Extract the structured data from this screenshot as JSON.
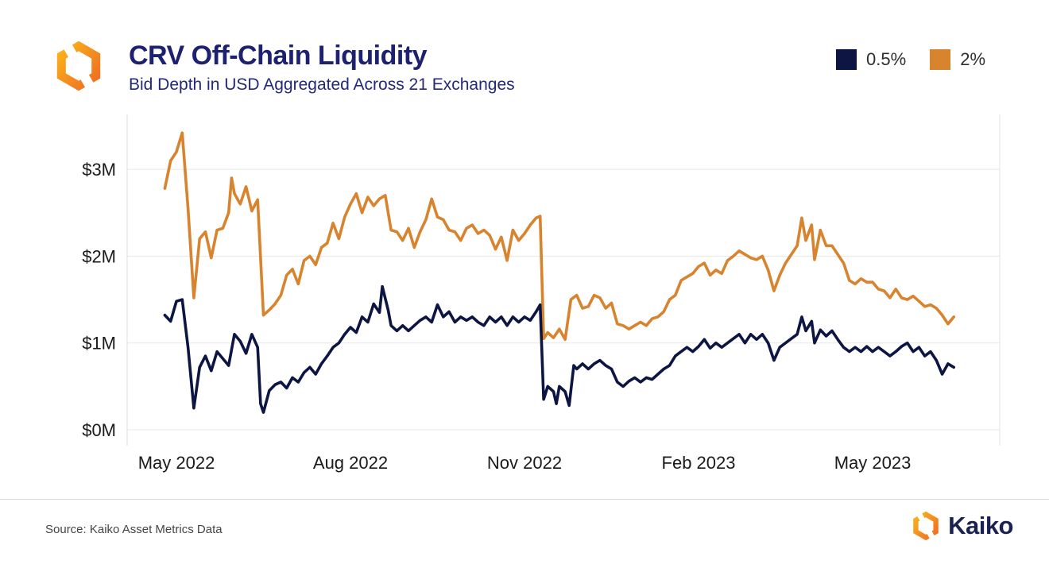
{
  "header": {
    "title": "CRV Off-Chain Liquidity",
    "subtitle": "Bid Depth in USD Aggregated Across 21 Exchanges"
  },
  "footer": {
    "source": "Source: Kaiko Asset Metrics Data",
    "brand": "Kaiko"
  },
  "brand_colors": {
    "title_navy": "#1e2170",
    "subtitle_navy": "#232878",
    "wordmark_navy": "#1b2150",
    "series_navy": "#0d1543",
    "series_orange": "#d8832e",
    "logo_gradient_start": "#fbb31a",
    "logo_gradient_end": "#ee6c24",
    "gridline_gray": "#e7e7e7",
    "axis_text": "#1a1a1a"
  },
  "chart_data": {
    "type": "line",
    "title": "CRV Off-Chain Liquidity",
    "subtitle": "Bid Depth in USD Aggregated Across 21 Exchanges",
    "x_unit": "months since 2022-05-01",
    "y_unit": "USD (millions)",
    "ylim": [
      0,
      3.6
    ],
    "grid": "horizontal",
    "legend_position": "top-right",
    "y_ticks": [
      {
        "value": 0,
        "label": "$0M"
      },
      {
        "value": 1,
        "label": "$1M"
      },
      {
        "value": 2,
        "label": "$2M"
      },
      {
        "value": 3,
        "label": "$3M"
      }
    ],
    "x_ticks": [
      {
        "t": 0,
        "label": "May 2022"
      },
      {
        "t": 3,
        "label": "Aug 2022"
      },
      {
        "t": 6,
        "label": "Nov 2022"
      },
      {
        "t": 9,
        "label": "Feb 2023"
      },
      {
        "t": 12,
        "label": "May 2023"
      }
    ],
    "series": [
      {
        "name": "0.5%",
        "color": "#0d1543",
        "points": [
          [
            -0.2,
            1.32
          ],
          [
            -0.1,
            1.25
          ],
          [
            0,
            1.48
          ],
          [
            0.1,
            1.5
          ],
          [
            0.2,
            0.95
          ],
          [
            0.3,
            0.25
          ],
          [
            0.4,
            0.72
          ],
          [
            0.5,
            0.85
          ],
          [
            0.6,
            0.68
          ],
          [
            0.7,
            0.9
          ],
          [
            0.8,
            0.82
          ],
          [
            0.9,
            0.74
          ],
          [
            1,
            1.1
          ],
          [
            1.1,
            1.02
          ],
          [
            1.2,
            0.88
          ],
          [
            1.3,
            1.1
          ],
          [
            1.4,
            0.95
          ],
          [
            1.45,
            0.3
          ],
          [
            1.5,
            0.2
          ],
          [
            1.6,
            0.45
          ],
          [
            1.7,
            0.52
          ],
          [
            1.8,
            0.55
          ],
          [
            1.9,
            0.48
          ],
          [
            2,
            0.6
          ],
          [
            2.1,
            0.55
          ],
          [
            2.2,
            0.66
          ],
          [
            2.3,
            0.72
          ],
          [
            2.4,
            0.64
          ],
          [
            2.5,
            0.76
          ],
          [
            2.6,
            0.85
          ],
          [
            2.7,
            0.95
          ],
          [
            2.8,
            1
          ],
          [
            2.9,
            1.1
          ],
          [
            3,
            1.18
          ],
          [
            3.1,
            1.12
          ],
          [
            3.2,
            1.3
          ],
          [
            3.3,
            1.24
          ],
          [
            3.4,
            1.45
          ],
          [
            3.5,
            1.35
          ],
          [
            3.55,
            1.65
          ],
          [
            3.65,
            1.38
          ],
          [
            3.7,
            1.2
          ],
          [
            3.8,
            1.14
          ],
          [
            3.9,
            1.2
          ],
          [
            4,
            1.14
          ],
          [
            4.1,
            1.2
          ],
          [
            4.2,
            1.26
          ],
          [
            4.3,
            1.3
          ],
          [
            4.4,
            1.24
          ],
          [
            4.5,
            1.44
          ],
          [
            4.6,
            1.3
          ],
          [
            4.7,
            1.36
          ],
          [
            4.8,
            1.24
          ],
          [
            4.9,
            1.3
          ],
          [
            5,
            1.26
          ],
          [
            5.1,
            1.3
          ],
          [
            5.2,
            1.24
          ],
          [
            5.3,
            1.2
          ],
          [
            5.4,
            1.3
          ],
          [
            5.5,
            1.24
          ],
          [
            5.6,
            1.3
          ],
          [
            5.7,
            1.2
          ],
          [
            5.8,
            1.3
          ],
          [
            5.9,
            1.24
          ],
          [
            6,
            1.3
          ],
          [
            6.1,
            1.26
          ],
          [
            6.2,
            1.36
          ],
          [
            6.27,
            1.44
          ],
          [
            6.33,
            0.35
          ],
          [
            6.4,
            0.5
          ],
          [
            6.5,
            0.44
          ],
          [
            6.55,
            0.3
          ],
          [
            6.6,
            0.5
          ],
          [
            6.7,
            0.44
          ],
          [
            6.77,
            0.28
          ],
          [
            6.85,
            0.74
          ],
          [
            6.9,
            0.7
          ],
          [
            7,
            0.76
          ],
          [
            7.1,
            0.7
          ],
          [
            7.2,
            0.76
          ],
          [
            7.3,
            0.8
          ],
          [
            7.4,
            0.74
          ],
          [
            7.5,
            0.7
          ],
          [
            7.6,
            0.55
          ],
          [
            7.7,
            0.5
          ],
          [
            7.8,
            0.56
          ],
          [
            7.9,
            0.6
          ],
          [
            8,
            0.55
          ],
          [
            8.1,
            0.6
          ],
          [
            8.2,
            0.58
          ],
          [
            8.3,
            0.64
          ],
          [
            8.4,
            0.7
          ],
          [
            8.5,
            0.74
          ],
          [
            8.6,
            0.85
          ],
          [
            8.7,
            0.9
          ],
          [
            8.8,
            0.95
          ],
          [
            8.9,
            0.9
          ],
          [
            9,
            0.96
          ],
          [
            9.1,
            1.04
          ],
          [
            9.2,
            0.94
          ],
          [
            9.3,
            1
          ],
          [
            9.4,
            0.95
          ],
          [
            9.5,
            1
          ],
          [
            9.6,
            1.05
          ],
          [
            9.7,
            1.1
          ],
          [
            9.8,
            1
          ],
          [
            9.9,
            1.1
          ],
          [
            10,
            1.04
          ],
          [
            10.1,
            1.1
          ],
          [
            10.2,
            1
          ],
          [
            10.3,
            0.8
          ],
          [
            10.4,
            0.95
          ],
          [
            10.5,
            1
          ],
          [
            10.6,
            1.05
          ],
          [
            10.7,
            1.1
          ],
          [
            10.78,
            1.3
          ],
          [
            10.85,
            1.14
          ],
          [
            10.95,
            1.25
          ],
          [
            11,
            1
          ],
          [
            11.1,
            1.15
          ],
          [
            11.2,
            1.08
          ],
          [
            11.3,
            1.14
          ],
          [
            11.4,
            1.04
          ],
          [
            11.5,
            0.95
          ],
          [
            11.6,
            0.9
          ],
          [
            11.7,
            0.95
          ],
          [
            11.8,
            0.9
          ],
          [
            11.9,
            0.96
          ],
          [
            12,
            0.9
          ],
          [
            12.1,
            0.95
          ],
          [
            12.2,
            0.9
          ],
          [
            12.3,
            0.85
          ],
          [
            12.4,
            0.9
          ],
          [
            12.5,
            0.96
          ],
          [
            12.6,
            1
          ],
          [
            12.7,
            0.9
          ],
          [
            12.8,
            0.95
          ],
          [
            12.9,
            0.85
          ],
          [
            13,
            0.9
          ],
          [
            13.1,
            0.8
          ],
          [
            13.2,
            0.64
          ],
          [
            13.3,
            0.76
          ],
          [
            13.4,
            0.72
          ]
        ]
      },
      {
        "name": "2%",
        "color": "#d8832e",
        "points": [
          [
            -0.2,
            2.78
          ],
          [
            -0.1,
            3.1
          ],
          [
            0,
            3.2
          ],
          [
            0.1,
            3.42
          ],
          [
            0.2,
            2.55
          ],
          [
            0.3,
            1.52
          ],
          [
            0.4,
            2.2
          ],
          [
            0.5,
            2.28
          ],
          [
            0.6,
            1.98
          ],
          [
            0.7,
            2.3
          ],
          [
            0.8,
            2.32
          ],
          [
            0.9,
            2.5
          ],
          [
            0.95,
            2.9
          ],
          [
            1,
            2.72
          ],
          [
            1.1,
            2.6
          ],
          [
            1.2,
            2.8
          ],
          [
            1.3,
            2.52
          ],
          [
            1.4,
            2.65
          ],
          [
            1.5,
            1.32
          ],
          [
            1.6,
            1.38
          ],
          [
            1.7,
            1.45
          ],
          [
            1.8,
            1.55
          ],
          [
            1.9,
            1.78
          ],
          [
            2,
            1.85
          ],
          [
            2.1,
            1.68
          ],
          [
            2.2,
            1.95
          ],
          [
            2.3,
            2
          ],
          [
            2.4,
            1.9
          ],
          [
            2.5,
            2.1
          ],
          [
            2.6,
            2.15
          ],
          [
            2.7,
            2.38
          ],
          [
            2.8,
            2.2
          ],
          [
            2.9,
            2.45
          ],
          [
            3,
            2.6
          ],
          [
            3.1,
            2.72
          ],
          [
            3.2,
            2.5
          ],
          [
            3.3,
            2.68
          ],
          [
            3.4,
            2.58
          ],
          [
            3.5,
            2.66
          ],
          [
            3.6,
            2.7
          ],
          [
            3.7,
            2.3
          ],
          [
            3.8,
            2.28
          ],
          [
            3.9,
            2.18
          ],
          [
            4,
            2.32
          ],
          [
            4.1,
            2.1
          ],
          [
            4.2,
            2.28
          ],
          [
            4.3,
            2.42
          ],
          [
            4.4,
            2.66
          ],
          [
            4.5,
            2.45
          ],
          [
            4.6,
            2.42
          ],
          [
            4.7,
            2.3
          ],
          [
            4.8,
            2.28
          ],
          [
            4.9,
            2.18
          ],
          [
            5,
            2.32
          ],
          [
            5.1,
            2.36
          ],
          [
            5.2,
            2.26
          ],
          [
            5.3,
            2.3
          ],
          [
            5.4,
            2.24
          ],
          [
            5.5,
            2.08
          ],
          [
            5.6,
            2.22
          ],
          [
            5.7,
            1.95
          ],
          [
            5.8,
            2.3
          ],
          [
            5.9,
            2.18
          ],
          [
            6,
            2.26
          ],
          [
            6.1,
            2.36
          ],
          [
            6.2,
            2.44
          ],
          [
            6.27,
            2.46
          ],
          [
            6.33,
            1.05
          ],
          [
            6.4,
            1.12
          ],
          [
            6.5,
            1.06
          ],
          [
            6.6,
            1.16
          ],
          [
            6.7,
            1.04
          ],
          [
            6.8,
            1.5
          ],
          [
            6.9,
            1.55
          ],
          [
            7,
            1.4
          ],
          [
            7.1,
            1.42
          ],
          [
            7.2,
            1.55
          ],
          [
            7.3,
            1.52
          ],
          [
            7.4,
            1.4
          ],
          [
            7.5,
            1.46
          ],
          [
            7.6,
            1.22
          ],
          [
            7.7,
            1.2
          ],
          [
            7.8,
            1.16
          ],
          [
            7.9,
            1.2
          ],
          [
            8,
            1.24
          ],
          [
            8.1,
            1.2
          ],
          [
            8.2,
            1.28
          ],
          [
            8.3,
            1.3
          ],
          [
            8.4,
            1.36
          ],
          [
            8.5,
            1.5
          ],
          [
            8.6,
            1.55
          ],
          [
            8.7,
            1.72
          ],
          [
            8.8,
            1.76
          ],
          [
            8.9,
            1.8
          ],
          [
            9,
            1.88
          ],
          [
            9.1,
            1.92
          ],
          [
            9.2,
            1.78
          ],
          [
            9.3,
            1.84
          ],
          [
            9.4,
            1.8
          ],
          [
            9.5,
            1.95
          ],
          [
            9.6,
            2
          ],
          [
            9.7,
            2.06
          ],
          [
            9.8,
            2.02
          ],
          [
            9.9,
            1.98
          ],
          [
            10,
            1.96
          ],
          [
            10.1,
            2
          ],
          [
            10.2,
            1.84
          ],
          [
            10.3,
            1.6
          ],
          [
            10.4,
            1.78
          ],
          [
            10.5,
            1.92
          ],
          [
            10.6,
            2.02
          ],
          [
            10.7,
            2.12
          ],
          [
            10.78,
            2.44
          ],
          [
            10.85,
            2.18
          ],
          [
            10.95,
            2.36
          ],
          [
            11,
            1.96
          ],
          [
            11.1,
            2.3
          ],
          [
            11.2,
            2.12
          ],
          [
            11.3,
            2.12
          ],
          [
            11.4,
            2.02
          ],
          [
            11.5,
            1.92
          ],
          [
            11.6,
            1.72
          ],
          [
            11.7,
            1.68
          ],
          [
            11.8,
            1.74
          ],
          [
            11.9,
            1.7
          ],
          [
            12,
            1.7
          ],
          [
            12.1,
            1.62
          ],
          [
            12.2,
            1.6
          ],
          [
            12.3,
            1.52
          ],
          [
            12.4,
            1.62
          ],
          [
            12.5,
            1.52
          ],
          [
            12.6,
            1.5
          ],
          [
            12.7,
            1.54
          ],
          [
            12.8,
            1.48
          ],
          [
            12.9,
            1.42
          ],
          [
            13,
            1.44
          ],
          [
            13.1,
            1.4
          ],
          [
            13.2,
            1.32
          ],
          [
            13.3,
            1.22
          ],
          [
            13.4,
            1.3
          ]
        ]
      }
    ]
  }
}
